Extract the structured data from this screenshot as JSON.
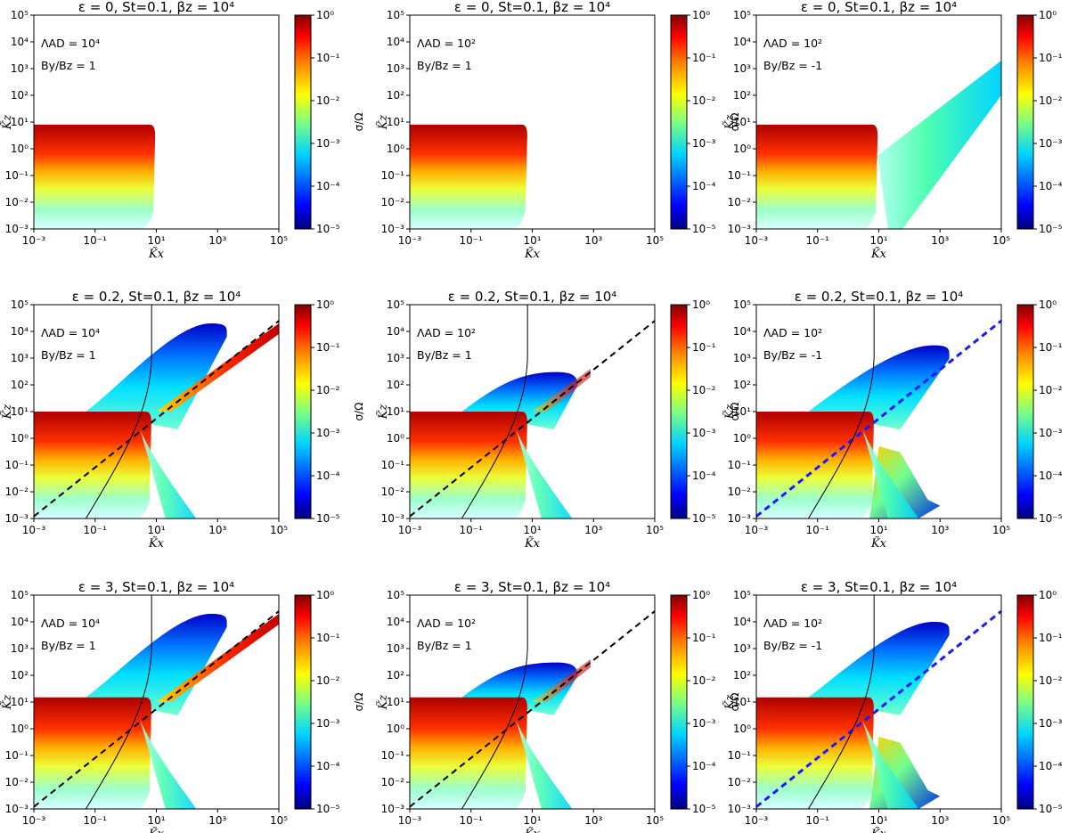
{
  "figure": {
    "colorbar": {
      "label": "σ/Ω",
      "scale": "log",
      "range": [
        1e-05,
        1
      ],
      "ticks": [
        "10⁰",
        "10⁻¹",
        "10⁻²",
        "10⁻³",
        "10⁻⁴",
        "10⁻⁵"
      ],
      "colormap": [
        "#00007f",
        "#0000ff",
        "#007fff",
        "#00ffff",
        "#7fff7f",
        "#ffff00",
        "#ff7f00",
        "#ff0000",
        "#7f0000"
      ]
    },
    "axes": {
      "xlabel": "K̃x",
      "ylabel": "K̃z",
      "xscale": "log",
      "yscale": "log",
      "xlim": [
        0.001,
        100000
      ],
      "ylim": [
        0.001,
        100000
      ],
      "xticks": [
        "10⁻³",
        "10⁻¹",
        "10¹",
        "10³",
        "10⁵"
      ],
      "yticks": [
        "10⁵",
        "10⁴",
        "10³",
        "10²",
        "10¹",
        "10⁰",
        "10⁻¹",
        "10⁻²",
        "10⁻³"
      ]
    }
  },
  "chart_data": [
    {
      "type": "heatmap",
      "title": "ε = 0, St=0.1, βz = 10⁴",
      "annotations": [
        "ΛAD = 10⁴",
        "By/Bz = 1"
      ],
      "epsilon": 0,
      "lambda_ad": 10000,
      "by_bz": 1,
      "unstable_region": {
        "max_kz": 8,
        "max_kx": 8
      },
      "dashed_line": false,
      "solid_line": false
    },
    {
      "type": "heatmap",
      "title": "ε = 0, St=0.1, βz = 10⁴",
      "annotations": [
        "ΛAD = 10²",
        "By/Bz = 1"
      ],
      "epsilon": 0,
      "lambda_ad": 100,
      "by_bz": 1,
      "unstable_region": {
        "max_kz": 8,
        "max_kx": 6
      },
      "dashed_line": false,
      "solid_line": false
    },
    {
      "type": "heatmap",
      "title": "ε = 0, St=0.1, βz = 10⁴",
      "annotations": [
        "ΛAD = 10²",
        "By/Bz = -1"
      ],
      "epsilon": 0,
      "lambda_ad": 100,
      "by_bz": -1,
      "unstable_region": {
        "max_kz": 8,
        "max_kx": 8,
        "diagonal_band_to_kx": 100000
      },
      "dashed_line": false,
      "solid_line": false
    },
    {
      "type": "heatmap",
      "title": "ε = 0.2, St=0.1, βz = 10⁴",
      "annotations": [
        "ΛAD = 10⁴",
        "By/Bz = 1"
      ],
      "epsilon": 0.2,
      "lambda_ad": 10000,
      "by_bz": 1,
      "unstable_region": {
        "max_kz": 10,
        "lobe_peak_kz": 20000
      },
      "dashed_line": true,
      "dashed_color": "#000000",
      "solid_line": true
    },
    {
      "type": "heatmap",
      "title": "ε = 0.2, St=0.1, βz = 10⁴",
      "annotations": [
        "ΛAD = 10²",
        "By/Bz = 1"
      ],
      "epsilon": 0.2,
      "lambda_ad": 100,
      "by_bz": 1,
      "unstable_region": {
        "max_kz": 10,
        "lobe_peak_kz": 300
      },
      "dashed_line": true,
      "dashed_color": "#000000",
      "solid_line": true
    },
    {
      "type": "heatmap",
      "title": "ε = 0.2, St=0.1, βz = 10⁴",
      "annotations": [
        "ΛAD = 10²",
        "By/Bz = -1"
      ],
      "epsilon": 0.2,
      "lambda_ad": 100,
      "by_bz": -1,
      "unstable_region": {
        "max_kz": 10,
        "lobe_peak_kz": 3000
      },
      "dashed_line": true,
      "dashed_color": "#1a1aff",
      "solid_line": true
    },
    {
      "type": "heatmap",
      "title": "ε = 3, St=0.1, βz = 10⁴",
      "annotations": [
        "ΛAD = 10⁴",
        "By/Bz = 1"
      ],
      "epsilon": 3,
      "lambda_ad": 10000,
      "by_bz": 1,
      "unstable_region": {
        "max_kz": 15,
        "lobe_peak_kz": 20000
      },
      "dashed_line": true,
      "dashed_color": "#000000",
      "solid_line": true
    },
    {
      "type": "heatmap",
      "title": "ε = 3, St=0.1, βz = 10⁴",
      "annotations": [
        "ΛAD = 10²",
        "By/Bz = 1"
      ],
      "epsilon": 3,
      "lambda_ad": 100,
      "by_bz": 1,
      "unstable_region": {
        "max_kz": 15,
        "lobe_peak_kz": 300
      },
      "dashed_line": true,
      "dashed_color": "#000000",
      "solid_line": true
    },
    {
      "type": "heatmap",
      "title": "ε = 3, St=0.1, βz = 10⁴",
      "annotations": [
        "ΛAD = 10²",
        "By/Bz = -1"
      ],
      "epsilon": 3,
      "lambda_ad": 100,
      "by_bz": -1,
      "unstable_region": {
        "max_kz": 15,
        "lobe_peak_kz": 10000
      },
      "dashed_line": true,
      "dashed_color": "#1a1aff",
      "solid_line": true
    }
  ]
}
